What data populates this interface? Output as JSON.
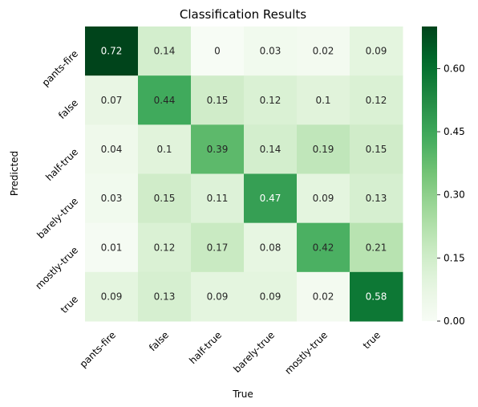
{
  "chart_data": {
    "type": "heatmap",
    "title": "Classification Results",
    "xlabel": "True",
    "ylabel": "Predicted",
    "x_categories": [
      "pants-fire",
      "false",
      "half-true",
      "barely-true",
      "mostly-true",
      "true"
    ],
    "y_categories": [
      "pants-fire",
      "false",
      "half-true",
      "barely-true",
      "mostly-true",
      "true"
    ],
    "values": [
      [
        0.72,
        0.14,
        0,
        0.03,
        0.02,
        0.09
      ],
      [
        0.07,
        0.44,
        0.15,
        0.12,
        0.1,
        0.12
      ],
      [
        0.04,
        0.1,
        0.39,
        0.14,
        0.19,
        0.15
      ],
      [
        0.03,
        0.15,
        0.11,
        0.47,
        0.09,
        0.13
      ],
      [
        0.01,
        0.12,
        0.17,
        0.08,
        0.42,
        0.21
      ],
      [
        0.09,
        0.13,
        0.09,
        0.09,
        0.02,
        0.58
      ]
    ],
    "colormap": "Greens",
    "color_range": [
      0,
      0.7
    ],
    "colorbar_ticks": [
      "0.00",
      "0.15",
      "0.30",
      "0.45",
      "0.60"
    ],
    "grid": false,
    "legend": "colorbar-right"
  }
}
